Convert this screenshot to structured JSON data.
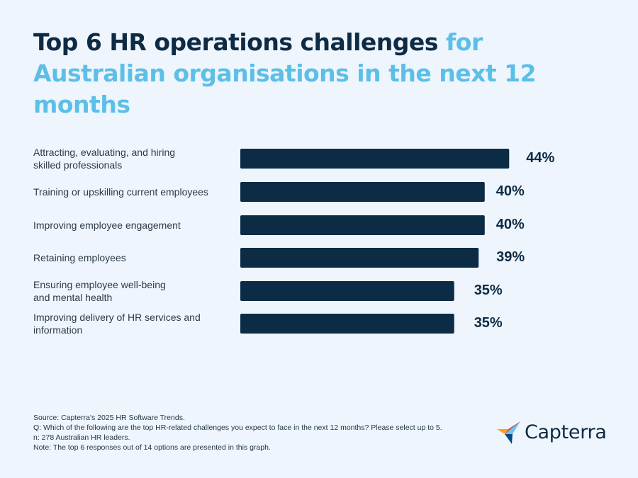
{
  "title": {
    "dark": "Top 6 HR operations challenges",
    "light": "for Australian organisations in the next 12 months"
  },
  "chart_data": {
    "type": "bar",
    "orientation": "horizontal",
    "categories": [
      [
        "Attracting, evaluating, and hiring",
        "skilled professionals"
      ],
      [
        "Training or upskilling current employees"
      ],
      [
        "Improving employee engagement"
      ],
      [
        "Retaining employees"
      ],
      [
        "Ensuring employee well-being",
        "and mental health"
      ],
      [
        "Improving delivery of HR services and",
        "information"
      ]
    ],
    "values": [
      44,
      40,
      40,
      39,
      35,
      35
    ],
    "value_labels": [
      "44%",
      "40%",
      "40%",
      "39%",
      "35%",
      "35%"
    ],
    "unit": "%",
    "bar_color": "#0c2b45",
    "grid": false,
    "legend": "none"
  },
  "footnote": {
    "source": "Source: Capterra's  2025 HR Software Trends.",
    "question": "Q: Which of the following are the top HR-related challenges you expect to face in the next 12 months? Please select up to 5.",
    "n": "n: 278 Australian HR leaders.",
    "note": "Note: The top 6 responses out of 14 options are presented in this graph."
  },
  "logo": {
    "name": "Capterra",
    "icon": "capterra-arrow-icon"
  },
  "colors": {
    "background": "#eef5fc",
    "title_dark": "#0e2a44",
    "title_light": "#5bbfe8"
  }
}
